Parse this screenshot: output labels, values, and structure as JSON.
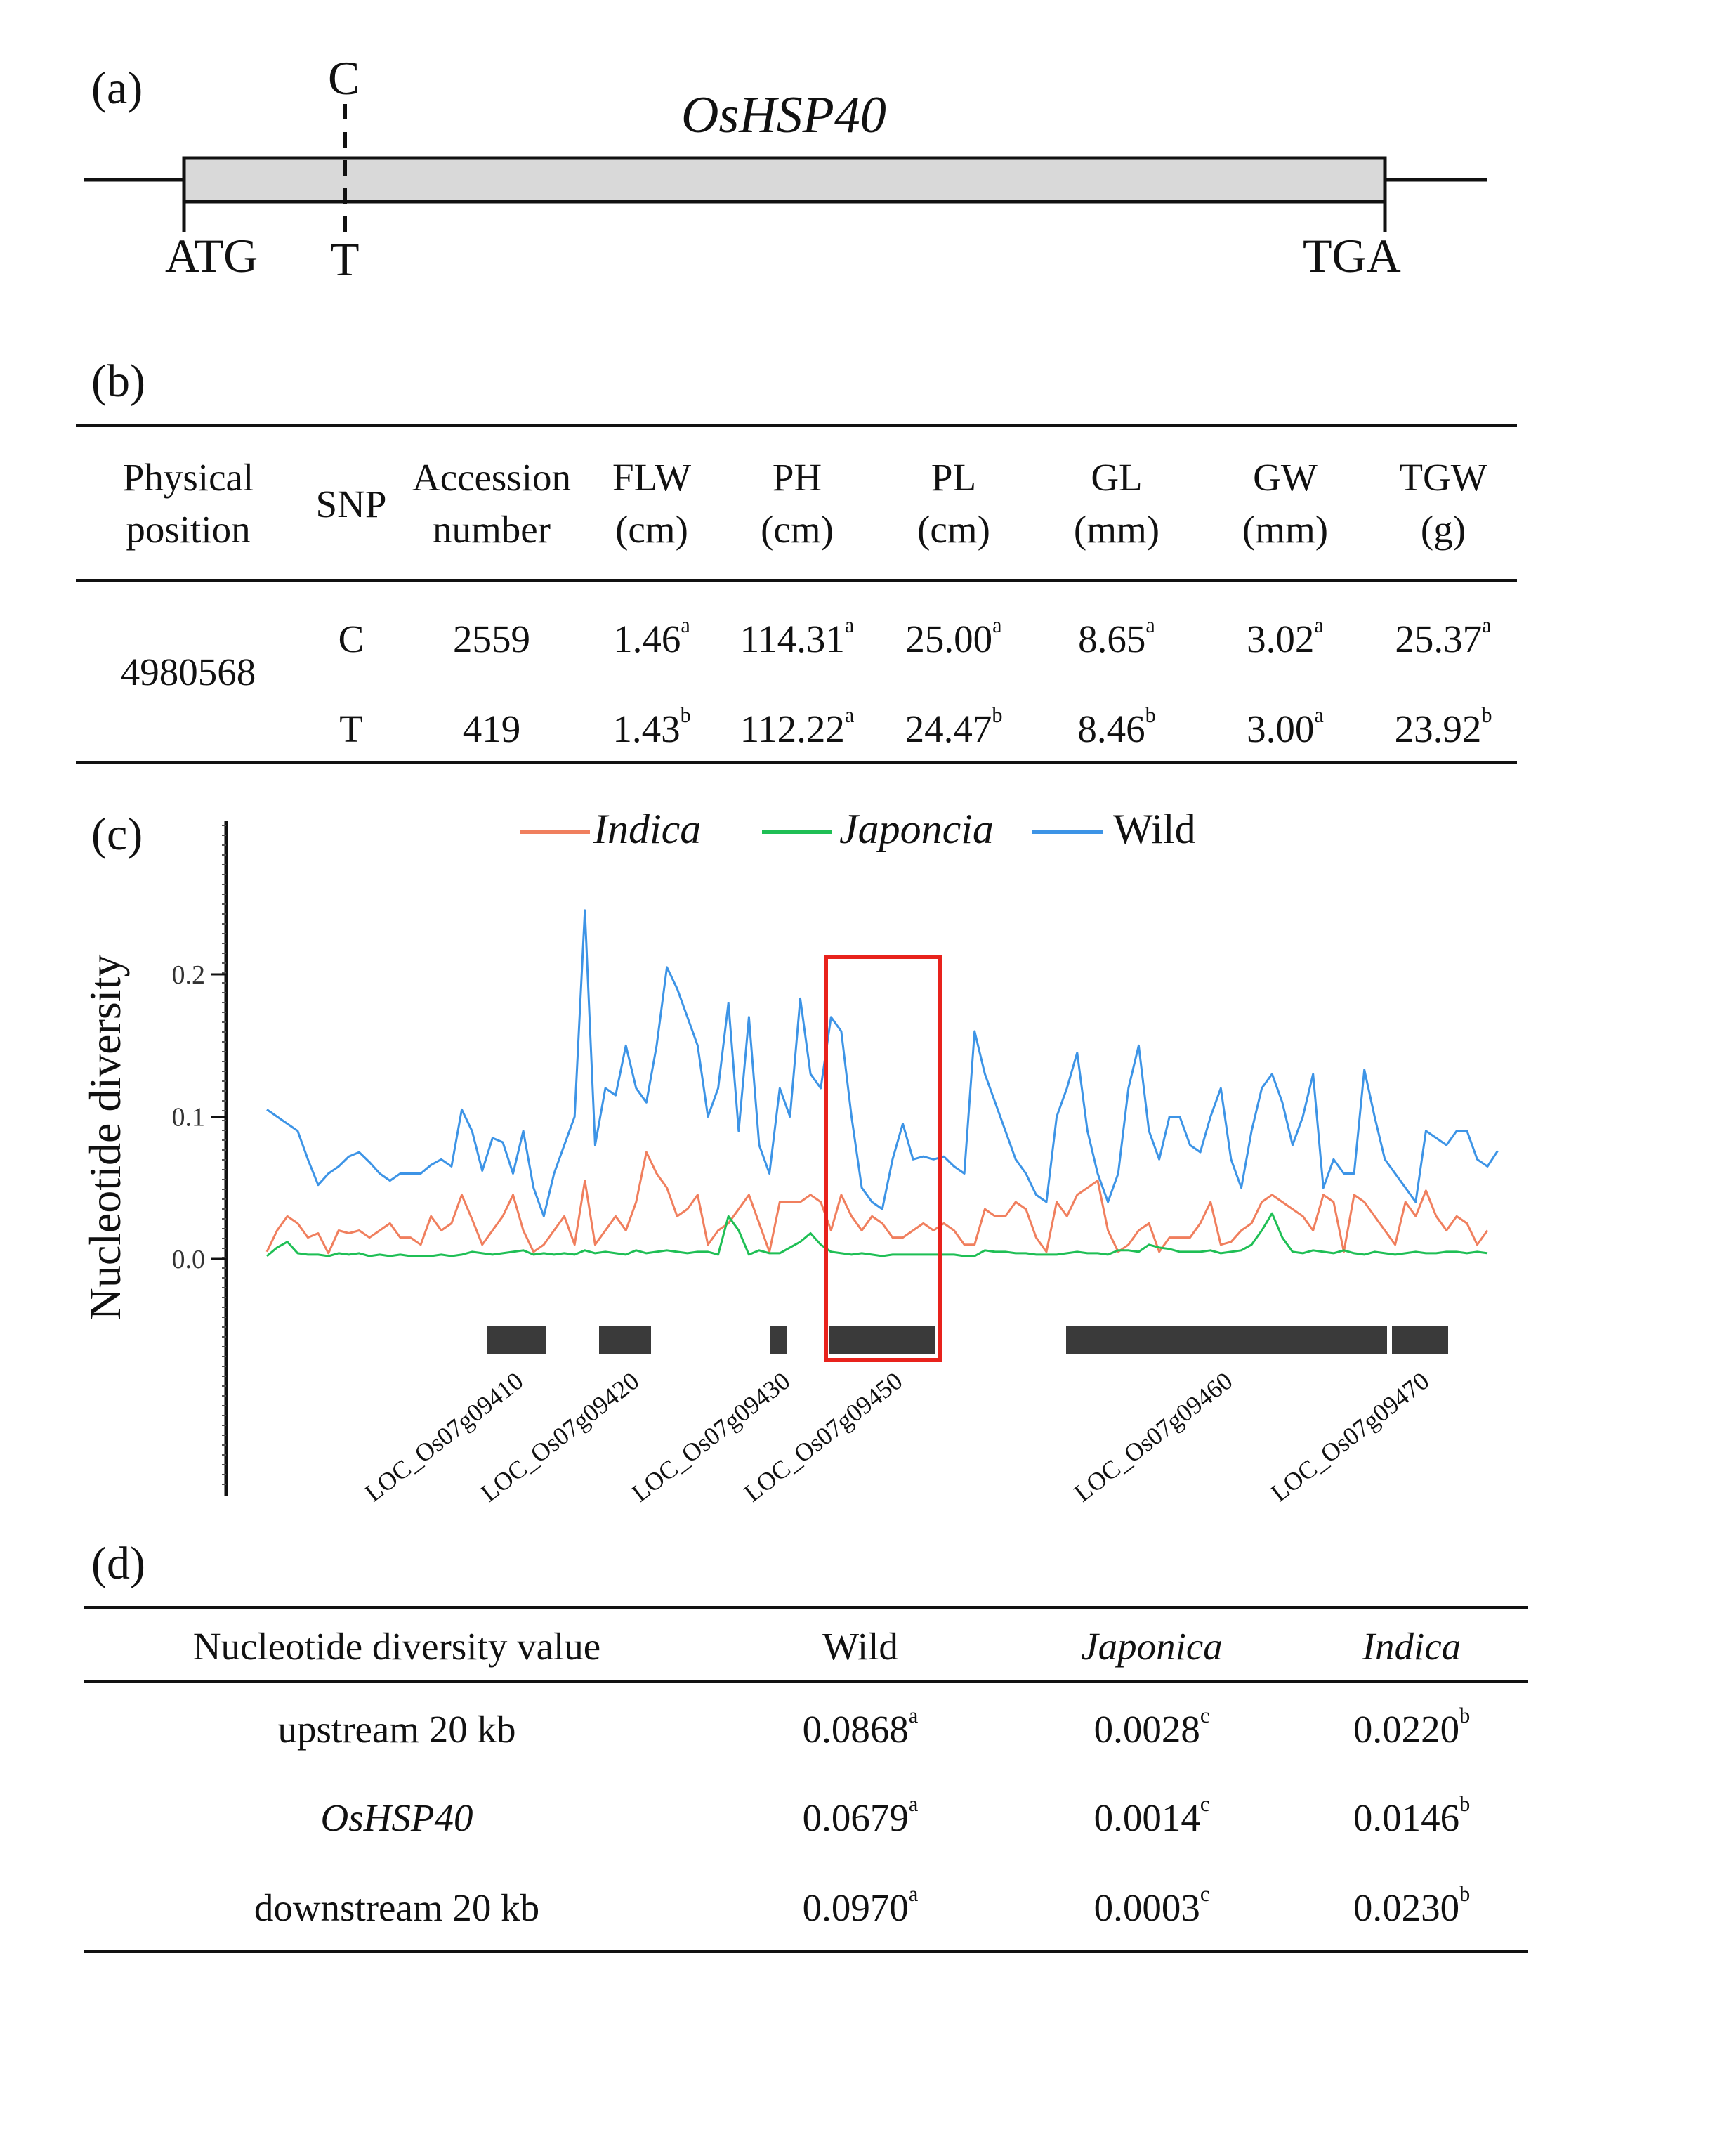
{
  "panel_a": {
    "label": "(a)",
    "gene_name": "OsHSP40",
    "snp_top": "C",
    "snp_bottom": "T",
    "start_codon": "ATG",
    "stop_codon": "TGA"
  },
  "panel_b": {
    "label": "(b)",
    "headers": [
      {
        "line1": "Physical",
        "line2": "position"
      },
      {
        "line1": "SNP",
        "line2": ""
      },
      {
        "line1": "Accession",
        "line2": "number"
      },
      {
        "line1": "FLW",
        "line2": "(cm)"
      },
      {
        "line1": "PH",
        "line2": "(cm)"
      },
      {
        "line1": "PL",
        "line2": "(cm)"
      },
      {
        "line1": "GL",
        "line2": "(mm)"
      },
      {
        "line1": "GW",
        "line2": "(mm)"
      },
      {
        "line1": "TGW",
        "line2": "(g)"
      }
    ],
    "position": "4980568",
    "rows": [
      {
        "snp": "C",
        "accession": "2559",
        "values": [
          {
            "v": "1.46",
            "s": "a"
          },
          {
            "v": "114.31",
            "s": "a"
          },
          {
            "v": "25.00",
            "s": "a"
          },
          {
            "v": "8.65",
            "s": "a"
          },
          {
            "v": "3.02",
            "s": "a"
          },
          {
            "v": "25.37",
            "s": "a"
          }
        ]
      },
      {
        "snp": "T",
        "accession": "419",
        "values": [
          {
            "v": "1.43",
            "s": "b"
          },
          {
            "v": "112.22",
            "s": "a"
          },
          {
            "v": "24.47",
            "s": "b"
          },
          {
            "v": "8.46",
            "s": "b"
          },
          {
            "v": "3.00",
            "s": "a"
          },
          {
            "v": "23.92",
            "s": "b"
          }
        ]
      }
    ]
  },
  "panel_c": {
    "label": "(c)",
    "ylabel": "Nucleotide diversity",
    "legend": [
      {
        "name": "Indica",
        "color": "#f07f5e",
        "italic": true
      },
      {
        "name": "Japoncia",
        "color": "#1fbf55",
        "italic": true
      },
      {
        "name": "Wild",
        "color": "#3d94e6",
        "italic": false
      }
    ],
    "genes": [
      "LOC_Os07g09410",
      "LOC_Os07g09420",
      "LOC_Os07g09430",
      "LOC_Os07g09450",
      "LOC_Os07g09460",
      "LOC_Os07g09470"
    ]
  },
  "chart_data": {
    "type": "line",
    "title": "",
    "xlabel": "",
    "ylabel": "Nucleotide diversity",
    "ylim": [
      -0.17,
      0.3
    ],
    "yticks": [
      "0.2",
      "0.1",
      "0.0"
    ],
    "ytick_values": [
      0.2,
      0.1,
      0.0
    ],
    "n_points": 120,
    "highlight_window_index": [
      56,
      67
    ],
    "series": [
      {
        "name": "Wild",
        "color": "#3d94e6",
        "values": [
          0.105,
          0.1,
          0.095,
          0.09,
          0.07,
          0.052,
          0.06,
          0.065,
          0.072,
          0.075,
          0.068,
          0.06,
          0.055,
          0.06,
          0.06,
          0.06,
          0.066,
          0.07,
          0.065,
          0.105,
          0.09,
          0.062,
          0.085,
          0.082,
          0.06,
          0.09,
          0.05,
          0.03,
          0.06,
          0.08,
          0.1,
          0.245,
          0.08,
          0.12,
          0.115,
          0.15,
          0.12,
          0.11,
          0.15,
          0.205,
          0.19,
          0.17,
          0.15,
          0.1,
          0.12,
          0.18,
          0.09,
          0.17,
          0.08,
          0.06,
          0.12,
          0.1,
          0.183,
          0.13,
          0.12,
          0.17,
          0.16,
          0.1,
          0.05,
          0.04,
          0.035,
          0.07,
          0.095,
          0.07,
          0.072,
          0.07,
          0.072,
          0.065,
          0.06,
          0.16,
          0.13,
          0.11,
          0.09,
          0.07,
          0.06,
          0.045,
          0.04,
          0.1,
          0.12,
          0.145,
          0.09,
          0.06,
          0.04,
          0.06,
          0.12,
          0.15,
          0.09,
          0.07,
          0.1,
          0.1,
          0.08,
          0.075,
          0.1,
          0.12,
          0.07,
          0.05,
          0.09,
          0.12,
          0.13,
          0.11,
          0.08,
          0.1,
          0.13,
          0.05,
          0.07,
          0.06,
          0.06,
          0.133,
          0.1,
          0.07,
          0.06,
          0.05,
          0.04,
          0.09,
          0.085,
          0.08,
          0.09,
          0.09,
          0.07,
          0.065,
          0.076
        ]
      },
      {
        "name": "Indica",
        "color": "#f07f5e",
        "values": [
          0.005,
          0.02,
          0.03,
          0.025,
          0.015,
          0.018,
          0.004,
          0.02,
          0.018,
          0.02,
          0.015,
          0.02,
          0.025,
          0.015,
          0.015,
          0.01,
          0.03,
          0.02,
          0.025,
          0.045,
          0.028,
          0.01,
          0.02,
          0.03,
          0.045,
          0.02,
          0.005,
          0.01,
          0.02,
          0.03,
          0.01,
          0.055,
          0.01,
          0.02,
          0.03,
          0.02,
          0.04,
          0.075,
          0.06,
          0.05,
          0.03,
          0.035,
          0.045,
          0.01,
          0.02,
          0.025,
          0.035,
          0.045,
          0.025,
          0.005,
          0.04,
          0.04,
          0.04,
          0.045,
          0.04,
          0.02,
          0.045,
          0.03,
          0.02,
          0.03,
          0.025,
          0.015,
          0.015,
          0.02,
          0.025,
          0.02,
          0.025,
          0.02,
          0.01,
          0.01,
          0.035,
          0.03,
          0.03,
          0.04,
          0.035,
          0.015,
          0.005,
          0.04,
          0.03,
          0.045,
          0.05,
          0.055,
          0.02,
          0.005,
          0.01,
          0.02,
          0.025,
          0.005,
          0.015,
          0.015,
          0.015,
          0.025,
          0.04,
          0.01,
          0.012,
          0.02,
          0.025,
          0.04,
          0.045,
          0.04,
          0.035,
          0.03,
          0.02,
          0.045,
          0.04,
          0.005,
          0.045,
          0.04,
          0.03,
          0.02,
          0.01,
          0.04,
          0.03,
          0.048,
          0.03,
          0.02,
          0.03,
          0.025,
          0.01,
          0.02
        ]
      },
      {
        "name": "Japoncia",
        "color": "#1fbf55",
        "values": [
          0.002,
          0.008,
          0.012,
          0.004,
          0.003,
          0.003,
          0.002,
          0.004,
          0.003,
          0.004,
          0.002,
          0.003,
          0.002,
          0.003,
          0.002,
          0.002,
          0.002,
          0.003,
          0.002,
          0.003,
          0.005,
          0.004,
          0.003,
          0.004,
          0.005,
          0.006,
          0.003,
          0.004,
          0.003,
          0.004,
          0.003,
          0.006,
          0.004,
          0.005,
          0.004,
          0.003,
          0.006,
          0.004,
          0.005,
          0.006,
          0.005,
          0.004,
          0.005,
          0.005,
          0.003,
          0.03,
          0.02,
          0.003,
          0.006,
          0.004,
          0.004,
          0.008,
          0.012,
          0.018,
          0.01,
          0.005,
          0.004,
          0.003,
          0.004,
          0.003,
          0.002,
          0.003,
          0.003,
          0.003,
          0.003,
          0.003,
          0.003,
          0.003,
          0.002,
          0.002,
          0.006,
          0.005,
          0.005,
          0.004,
          0.004,
          0.003,
          0.003,
          0.003,
          0.004,
          0.005,
          0.004,
          0.004,
          0.003,
          0.006,
          0.006,
          0.005,
          0.01,
          0.008,
          0.007,
          0.005,
          0.005,
          0.005,
          0.006,
          0.004,
          0.005,
          0.006,
          0.01,
          0.02,
          0.032,
          0.015,
          0.005,
          0.004,
          0.006,
          0.005,
          0.004,
          0.006,
          0.004,
          0.003,
          0.005,
          0.004,
          0.003,
          0.004,
          0.005,
          0.004,
          0.004,
          0.005,
          0.005,
          0.004,
          0.005,
          0.004
        ]
      }
    ]
  },
  "panel_d": {
    "label": "(d)",
    "headers": [
      {
        "text": "Nucleotide diversity value",
        "italic": false
      },
      {
        "text": "Wild",
        "italic": false
      },
      {
        "text": "Japonica",
        "italic": true
      },
      {
        "text": "Indica",
        "italic": true
      }
    ],
    "rows": [
      {
        "name": "upstream 20 kb",
        "italic": false,
        "values": [
          {
            "v": "0.0868",
            "s": "a"
          },
          {
            "v": "0.0028",
            "s": "c"
          },
          {
            "v": "0.0220",
            "s": "b"
          }
        ]
      },
      {
        "name": "OsHSP40",
        "italic": true,
        "values": [
          {
            "v": "0.0679",
            "s": "a"
          },
          {
            "v": "0.0014",
            "s": "c"
          },
          {
            "v": "0.0146",
            "s": "b"
          }
        ]
      },
      {
        "name": "downstream 20 kb",
        "italic": false,
        "values": [
          {
            "v": "0.0970",
            "s": "a"
          },
          {
            "v": "0.0003",
            "s": "c"
          },
          {
            "v": "0.0230",
            "s": "b"
          }
        ]
      }
    ]
  }
}
